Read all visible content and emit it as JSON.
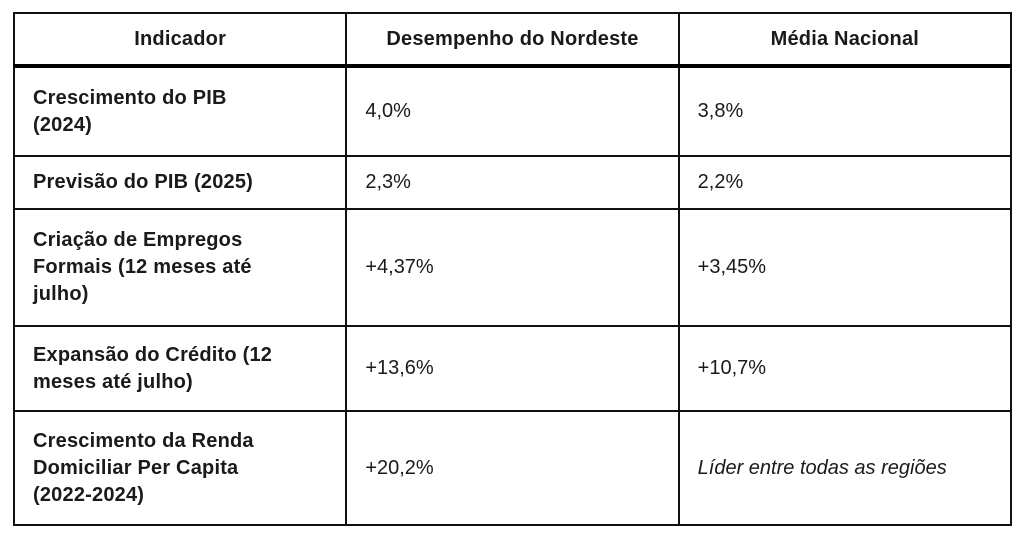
{
  "page": {
    "background_color": "#ffffff",
    "text_color": "#1a1a1a",
    "border_color": "#111111",
    "header_rule_color": "#000000"
  },
  "table": {
    "columns": [
      "Indicador",
      "Desempenho do Nordeste",
      "Média Nacional"
    ],
    "rows": [
      {
        "indicador": "Crescimento do PIB (2024)",
        "nordeste": "4,0%",
        "nacional": "3,8%"
      },
      {
        "indicador": "Previsão do PIB (2025)",
        "nordeste": "2,3%",
        "nacional": "2,2%"
      },
      {
        "indicador": "Criação de Empregos Formais (12 meses até julho)",
        "nordeste": "+4,37%",
        "nacional": "+3,45%"
      },
      {
        "indicador": "Expansão do Crédito (12 meses até julho)",
        "nordeste": "+13,6%",
        "nacional": "+10,7%"
      },
      {
        "indicador": "Crescimento da Renda Domiciliar Per Capita (2022-2024)",
        "nordeste": "+20,2%",
        "nacional": "Líder entre todas as regiões"
      }
    ]
  },
  "chart_data": {
    "type": "table",
    "columns": [
      "Indicador",
      "Desempenho do Nordeste",
      "Média Nacional"
    ],
    "rows": [
      [
        "Crescimento do PIB (2024)",
        "4,0%",
        "3,8%"
      ],
      [
        "Previsão do PIB (2025)",
        "2,3%",
        "2,2%"
      ],
      [
        "Criação de Empregos Formais (12 meses até julho)",
        "+4,37%",
        "+3,45%"
      ],
      [
        "Expansão do Crédito (12 meses até julho)",
        "+13,6%",
        "+10,7%"
      ],
      [
        "Crescimento da Renda Domiciliar Per Capita (2022-2024)",
        "+20,2%",
        "Líder entre todas as regiões"
      ]
    ]
  }
}
